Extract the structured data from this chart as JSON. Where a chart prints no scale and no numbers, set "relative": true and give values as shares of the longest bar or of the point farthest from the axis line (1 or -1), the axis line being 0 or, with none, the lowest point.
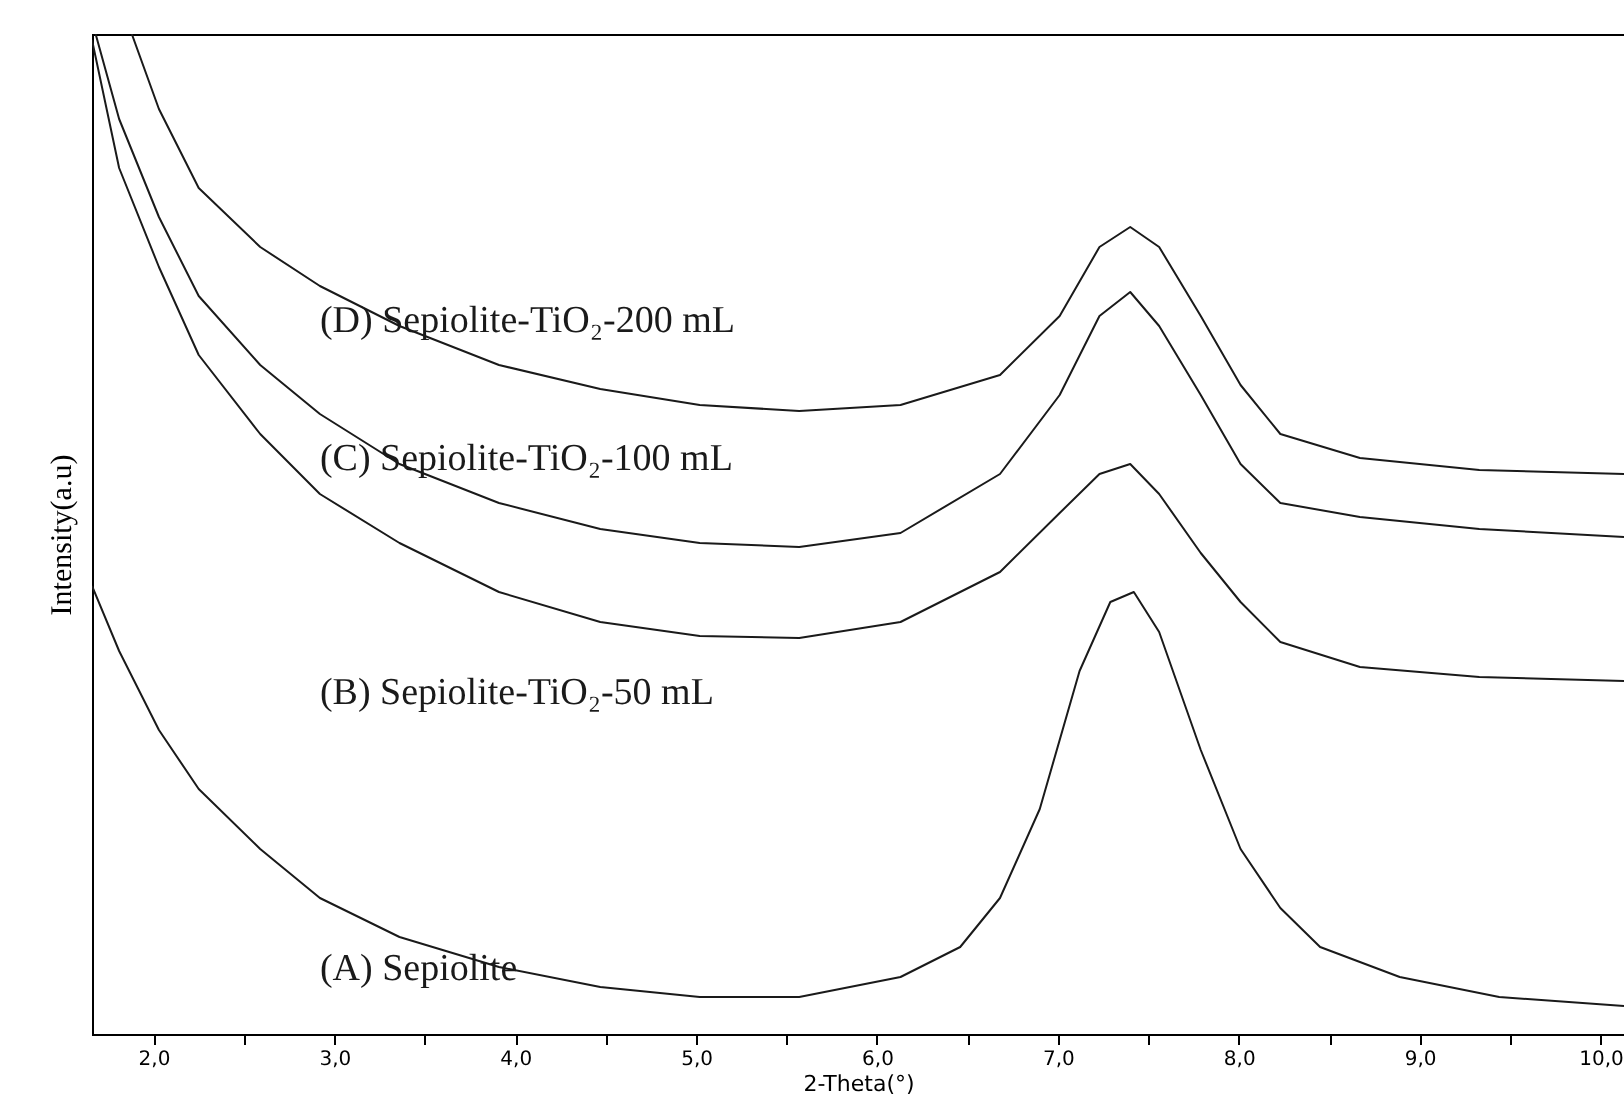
{
  "chart_data": {
    "type": "line",
    "relative": true,
    "xlabel": "2-Theta(°)",
    "ylabel": "Intensity(a.u)",
    "xlim": [
      1.66,
      10.13
    ],
    "xticks": [
      {
        "value": 2,
        "label": "2,0"
      },
      {
        "value": 2.5,
        "label": null
      },
      {
        "value": 3,
        "label": "3,0"
      },
      {
        "value": 3.5,
        "label": null
      },
      {
        "value": 4,
        "label": "4,0"
      },
      {
        "value": 4.5,
        "label": null
      },
      {
        "value": 5,
        "label": "5,0"
      },
      {
        "value": 5.5,
        "label": null
      },
      {
        "value": 6,
        "label": "6,0"
      },
      {
        "value": 6.5,
        "label": null
      },
      {
        "value": 7,
        "label": "7,0"
      },
      {
        "value": 7.5,
        "label": null
      },
      {
        "value": 8,
        "label": "8,0"
      },
      {
        "value": 8.5,
        "label": null
      },
      {
        "value": 9,
        "label": "9,0"
      },
      {
        "value": 9.5,
        "label": null
      },
      {
        "value": 10,
        "label": "10,0"
      }
    ],
    "grid": false,
    "marker": "none",
    "line_style": "solid",
    "series": [
      {
        "name": "(D) Sepiolite-TiO₂-200 mL",
        "color": "#1a1a1a",
        "x": [
          1.88,
          2.03,
          2.25,
          2.59,
          2.92,
          3.36,
          3.91,
          4.47,
          5.02,
          5.57,
          6.13,
          6.68,
          7.01,
          7.23,
          7.4,
          7.56,
          7.79,
          8.01,
          8.23,
          8.67,
          9.33,
          10.13
        ],
        "values": [
          1.0,
          0.925,
          0.846,
          0.787,
          0.748,
          0.708,
          0.669,
          0.645,
          0.629,
          0.623,
          0.629,
          0.659,
          0.718,
          0.787,
          0.807,
          0.787,
          0.718,
          0.649,
          0.6,
          0.576,
          0.564,
          0.56
        ]
      },
      {
        "name": "(C) Sepiolite-TiO₂-100 mL",
        "color": "#1a1a1a",
        "x": [
          1.68,
          1.81,
          2.03,
          2.25,
          2.59,
          2.92,
          3.36,
          3.91,
          4.47,
          5.02,
          5.57,
          6.13,
          6.68,
          7.01,
          7.23,
          7.4,
          7.56,
          7.79,
          8.01,
          8.23,
          8.67,
          9.33,
          10.13
        ],
        "values": [
          1.0,
          0.915,
          0.817,
          0.738,
          0.669,
          0.62,
          0.57,
          0.531,
          0.505,
          0.491,
          0.487,
          0.501,
          0.56,
          0.639,
          0.718,
          0.742,
          0.708,
          0.639,
          0.57,
          0.531,
          0.517,
          0.505,
          0.497
        ]
      },
      {
        "name": "(B) Sepiolite-TiO₂-50 mL",
        "color": "#1a1a1a",
        "x": [
          1.66,
          1.81,
          2.03,
          2.25,
          2.59,
          2.92,
          3.36,
          3.91,
          4.47,
          5.02,
          5.57,
          6.13,
          6.68,
          7.01,
          7.23,
          7.4,
          7.56,
          7.79,
          8.01,
          8.23,
          8.67,
          9.33,
          10.13
        ],
        "values": [
          0.994,
          0.866,
          0.767,
          0.679,
          0.6,
          0.54,
          0.491,
          0.442,
          0.412,
          0.398,
          0.396,
          0.412,
          0.462,
          0.521,
          0.56,
          0.57,
          0.54,
          0.481,
          0.432,
          0.392,
          0.367,
          0.357,
          0.353
        ]
      },
      {
        "name": "(A) Sepiolite",
        "color": "#1a1a1a",
        "x": [
          1.66,
          1.81,
          2.03,
          2.25,
          2.59,
          2.92,
          3.36,
          3.91,
          4.47,
          5.02,
          5.57,
          6.13,
          6.46,
          6.68,
          6.9,
          7.12,
          7.29,
          7.42,
          7.56,
          7.79,
          8.01,
          8.23,
          8.45,
          8.89,
          9.44,
          10.13
        ],
        "values": [
          0.448,
          0.383,
          0.304,
          0.245,
          0.185,
          0.136,
          0.097,
          0.067,
          0.047,
          0.037,
          0.037,
          0.057,
          0.087,
          0.136,
          0.225,
          0.363,
          0.432,
          0.442,
          0.402,
          0.284,
          0.185,
          0.126,
          0.087,
          0.057,
          0.037,
          0.028
        ]
      }
    ]
  }
}
